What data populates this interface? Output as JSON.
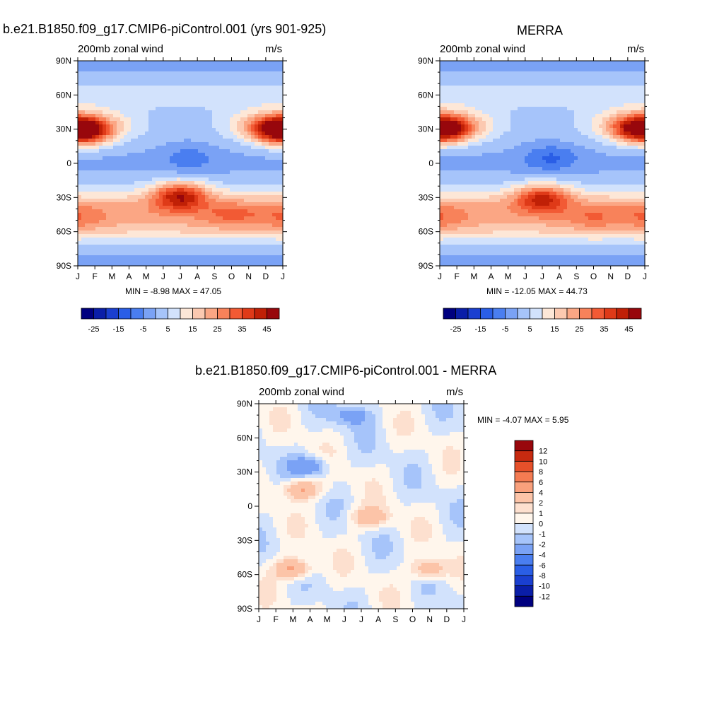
{
  "panels": [
    {
      "id": "model",
      "title": "b.e21.B1850.f09_g17.CMIP6-piControl.001 (yrs 901-925)",
      "subtitle_left": "200mb zonal wind",
      "subtitle_right": "m/s",
      "stats": "MIN =  -8.98 MAX =  47.05"
    },
    {
      "id": "obs",
      "title": "MERRA",
      "subtitle_left": "200mb zonal wind",
      "subtitle_right": "m/s",
      "stats": "MIN = -12.05 MAX =  44.73"
    },
    {
      "id": "diff",
      "title": "b.e21.B1850.f09_g17.CMIP6-piControl.001 - MERRA",
      "subtitle_left": "200mb zonal wind",
      "subtitle_right": "m/s",
      "stats": "MIN =  -4.07 MAX =   5.95"
    }
  ],
  "chart_data": [
    {
      "type": "heatmap",
      "title": "b.e21.B1850.f09_g17.CMIP6-piControl.001 (yrs 901-925)",
      "x_tick_labels": [
        "J",
        "F",
        "M",
        "A",
        "M",
        "J",
        "J",
        "A",
        "S",
        "O",
        "N",
        "D",
        "J"
      ],
      "y_tick_labels": [
        "90N",
        "60N",
        "30N",
        "0",
        "30S",
        "60S",
        "90S"
      ],
      "ylim": [
        -90,
        90
      ],
      "value_range": [
        -8.98,
        47.05
      ],
      "colorbar_levels": [
        -30,
        -25,
        -20,
        -15,
        -10,
        -5,
        0,
        5,
        10,
        15,
        20,
        25,
        30,
        35,
        40,
        45,
        50
      ],
      "colorbar_labels": [
        "-25",
        "-15",
        "-5",
        "5",
        "15",
        "25",
        "35",
        "45"
      ],
      "features": [
        {
          "month": 1.5,
          "lat": 28,
          "value": 45
        },
        {
          "month": 12.5,
          "lat": 30,
          "value": 42
        },
        {
          "month": 7.5,
          "lat": 5,
          "value": -8
        },
        {
          "month": 7.0,
          "lat": -28,
          "value": 45
        },
        {
          "month": 1.0,
          "lat": -48,
          "value": 30
        },
        {
          "month": 10.0,
          "lat": -45,
          "value": 32
        }
      ]
    },
    {
      "type": "heatmap",
      "title": "MERRA",
      "x_tick_labels": [
        "J",
        "F",
        "M",
        "A",
        "M",
        "J",
        "J",
        "A",
        "S",
        "O",
        "N",
        "D",
        "J"
      ],
      "y_tick_labels": [
        "90N",
        "60N",
        "30N",
        "0",
        "30S",
        "60S",
        "90S"
      ],
      "ylim": [
        -90,
        90
      ],
      "value_range": [
        -12.05,
        44.73
      ],
      "colorbar_levels": [
        -30,
        -25,
        -20,
        -15,
        -10,
        -5,
        0,
        5,
        10,
        15,
        20,
        25,
        30,
        35,
        40,
        45,
        50
      ],
      "colorbar_labels": [
        "-25",
        "-15",
        "-5",
        "5",
        "15",
        "25",
        "35",
        "45"
      ],
      "features": [
        {
          "month": 1.5,
          "lat": 30,
          "value": 43
        },
        {
          "month": 12.5,
          "lat": 30,
          "value": 40
        },
        {
          "month": 7.5,
          "lat": 5,
          "value": -11
        },
        {
          "month": 7.0,
          "lat": -30,
          "value": 42
        },
        {
          "month": 1.0,
          "lat": -48,
          "value": 30
        },
        {
          "month": 10.0,
          "lat": -48,
          "value": 30
        }
      ]
    },
    {
      "type": "heatmap",
      "title": "b.e21.B1850.f09_g17.CMIP6-piControl.001 - MERRA",
      "x_tick_labels": [
        "J",
        "F",
        "M",
        "A",
        "M",
        "J",
        "J",
        "A",
        "S",
        "O",
        "N",
        "D",
        "J"
      ],
      "y_tick_labels": [
        "90N",
        "60N",
        "30N",
        "0",
        "30S",
        "60S",
        "90S"
      ],
      "ylim": [
        -90,
        90
      ],
      "value_range": [
        -4.07,
        5.95
      ],
      "colorbar_levels": [
        -14,
        -12,
        -10,
        -8,
        -6,
        -4,
        -2,
        -1,
        0,
        1,
        2,
        4,
        6,
        8,
        10,
        12,
        14
      ],
      "colorbar_labels": [
        "12",
        "10",
        "8",
        "6",
        "4",
        "2",
        "1",
        "0",
        "-1",
        "-2",
        "-4",
        "-6",
        "-8",
        "-10",
        "-12"
      ],
      "features": [
        {
          "month": 4.0,
          "lat": 35,
          "value": -3.5
        },
        {
          "month": 6.5,
          "lat": 80,
          "value": -3
        },
        {
          "month": 3.5,
          "lat": 15,
          "value": 4
        },
        {
          "month": 7.5,
          "lat": -10,
          "value": 4
        },
        {
          "month": 3.0,
          "lat": -55,
          "value": 4
        },
        {
          "month": 11.0,
          "lat": -55,
          "value": 3
        }
      ]
    }
  ],
  "colors": {
    "palette_abs": [
      "#00007f",
      "#0a1ea8",
      "#1a3fd0",
      "#2a5ee6",
      "#4a7ef0",
      "#7aa2f5",
      "#a6c4fa",
      "#d2e2fc",
      "#fde7d7",
      "#fcc9b0",
      "#fba684",
      "#f8825a",
      "#f25a34",
      "#df3a18",
      "#c02006",
      "#98070c"
    ],
    "palette_diff": [
      "#00007f",
      "#0a1ea8",
      "#1a3fd0",
      "#2a5ee6",
      "#4a7ef0",
      "#7aa2f5",
      "#a6c4fa",
      "#d2e2fc",
      "#fff6ec",
      "#fde0cf",
      "#fcc4a8",
      "#f9a07c",
      "#f47b52",
      "#e6502a",
      "#c72a10",
      "#98070c"
    ]
  }
}
